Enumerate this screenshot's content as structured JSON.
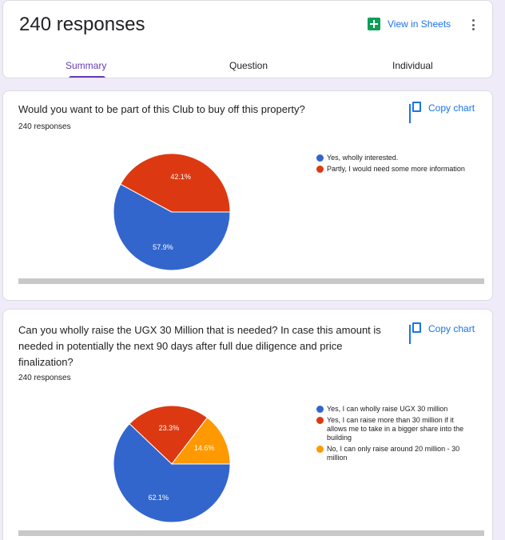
{
  "header": {
    "responses_title": "240 responses",
    "view_sheets_label": "View in Sheets",
    "tabs": [
      {
        "label": "Summary",
        "active": true
      },
      {
        "label": "Question",
        "active": false
      },
      {
        "label": "Individual",
        "active": false
      }
    ]
  },
  "questions": [
    {
      "title": "Would you want to be part of this Club to buy off this property?",
      "response_count": "240 responses",
      "copy_chart_label": "Copy chart",
      "legend": [
        {
          "label": "Yes, wholly interested.",
          "color": "#3366cc"
        },
        {
          "label": "Partly, I would need some more information",
          "color": "#dc3912"
        }
      ]
    },
    {
      "title": "Can you wholly raise the UGX 30 Million that is needed? In case this amount is needed in potentially the next 90 days after full due diligence and price finalization?",
      "response_count": "240 responses",
      "copy_chart_label": "Copy chart",
      "legend": [
        {
          "label": "Yes, I can wholly raise UGX 30 million",
          "color": "#3366cc"
        },
        {
          "label": "Yes, I can raise more than 30 million if it allows me to take in a bigger share into the building",
          "color": "#dc3912"
        },
        {
          "label": "No, I can only raise around 20 million - 30 million",
          "color": "#ff9900"
        }
      ]
    }
  ],
  "chart_data": [
    {
      "type": "pie",
      "categories": [
        "Yes, wholly interested.",
        "Partly, I would need some more information"
      ],
      "values": [
        57.9,
        42.1
      ],
      "labels": [
        "57.9%",
        "42.1%"
      ],
      "colors": [
        "#3366cc",
        "#dc3912"
      ],
      "legend_position": "right"
    },
    {
      "type": "pie",
      "categories": [
        "Yes, I can wholly raise UGX 30 million",
        "Yes, I can raise more than 30 million if it allows me to take in a bigger share into the building",
        "No, I can only raise around 20 million - 30 million"
      ],
      "values": [
        62.1,
        23.3,
        14.6
      ],
      "labels": [
        "62.1%",
        "23.3%",
        "14.6%"
      ],
      "colors": [
        "#3366cc",
        "#dc3912",
        "#ff9900"
      ],
      "legend_position": "right"
    }
  ]
}
